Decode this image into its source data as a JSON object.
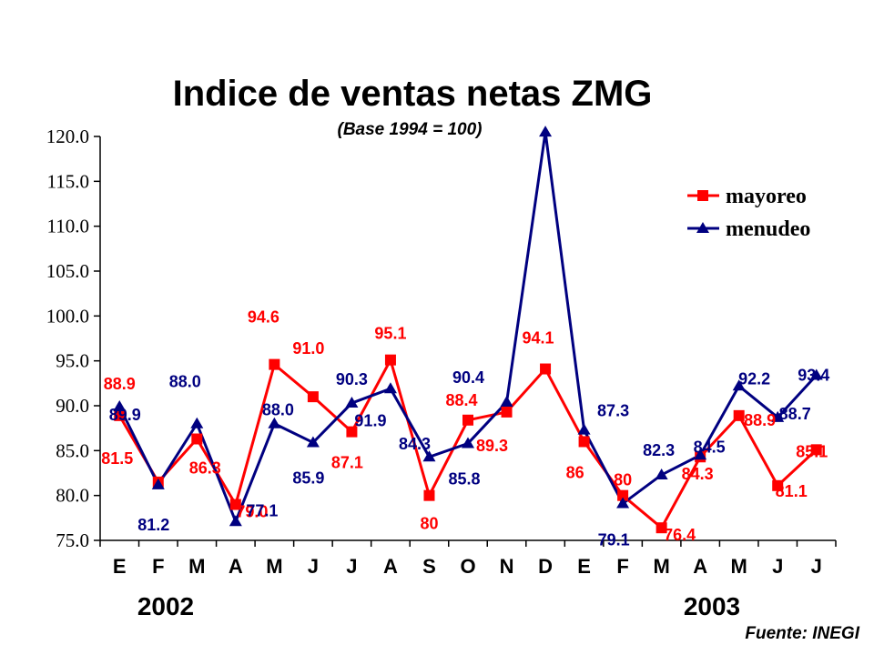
{
  "chart_data": {
    "type": "line",
    "title": "Indice de ventas netas ZMG",
    "subtitle": "(Base 1994 = 100)",
    "categories": [
      "E",
      "F",
      "M",
      "A",
      "M",
      "J",
      "J",
      "A",
      "S",
      "O",
      "N",
      "D",
      "E",
      "F",
      "M",
      "A",
      "M",
      "J",
      "J"
    ],
    "year_labels": [
      "2002",
      "2003"
    ],
    "source": "Fuente: INEGI",
    "ylim": [
      75,
      120
    ],
    "yticks": [
      "75.0",
      "80.0",
      "85.0",
      "90.0",
      "95.0",
      "100.0",
      "105.0",
      "110.0",
      "115.0",
      "120.0"
    ],
    "legend_position": "top-right",
    "series": [
      {
        "name": "mayoreo",
        "color": "#ff0000",
        "marker": "square",
        "values": [
          88.9,
          81.5,
          86.3,
          79.0,
          94.6,
          91.0,
          87.1,
          95.1,
          80.0,
          88.4,
          89.3,
          94.1,
          86.0,
          80.0,
          76.4,
          84.3,
          88.9,
          81.1,
          85.1
        ],
        "labels": [
          "88.9",
          "81.5",
          "86.3",
          "79.0",
          "94.6",
          "91.0",
          "87.1",
          "95.1",
          "80",
          "88.4",
          "89.3",
          "94.1",
          "86",
          "80",
          "76.4",
          "84.3",
          "88.9",
          "81.1",
          "85.1"
        ]
      },
      {
        "name": "menudeo",
        "color": "#000080",
        "marker": "triangle",
        "values": [
          89.9,
          81.2,
          88.0,
          77.1,
          88.0,
          85.9,
          90.3,
          91.9,
          84.3,
          85.8,
          90.4,
          120.5,
          87.3,
          79.1,
          82.3,
          84.5,
          92.2,
          88.7,
          93.4
        ],
        "labels": [
          "89.9",
          "81.2",
          "88.0",
          "77.1",
          "88.0",
          "85.9",
          "90.3",
          "91.9",
          "84.3",
          "85.8",
          "90.4",
          "",
          "87.3",
          "79.1",
          "82.3",
          "84.5",
          "92.2",
          "88.7",
          "93.4"
        ]
      }
    ]
  }
}
